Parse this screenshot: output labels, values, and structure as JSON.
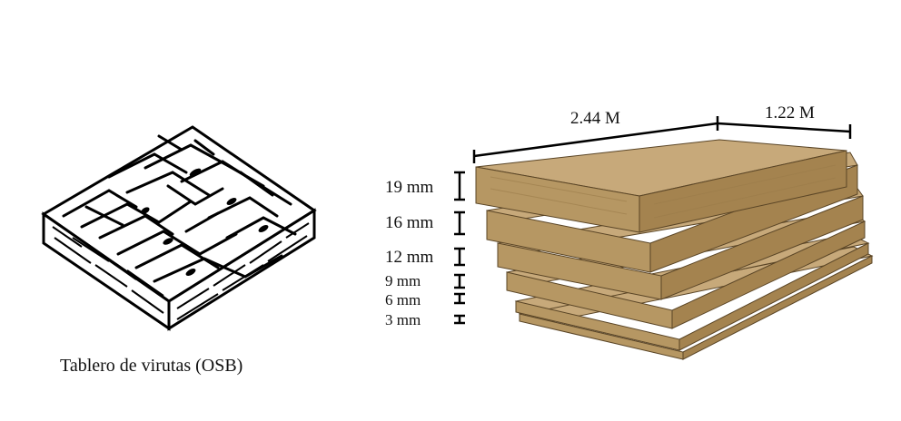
{
  "osb": {
    "caption": "Tablero de virutas (OSB)"
  },
  "dimensions": {
    "length": "2.44 M",
    "width": "1.22 M"
  },
  "thicknesses": [
    "19 mm",
    "16 mm",
    "12 mm",
    "9 mm",
    "6 mm",
    "3 mm"
  ],
  "colors": {
    "board_top": "#c7a97a",
    "board_front": "#b69763",
    "board_side": "#a4834f",
    "edge": "#5a4526"
  }
}
